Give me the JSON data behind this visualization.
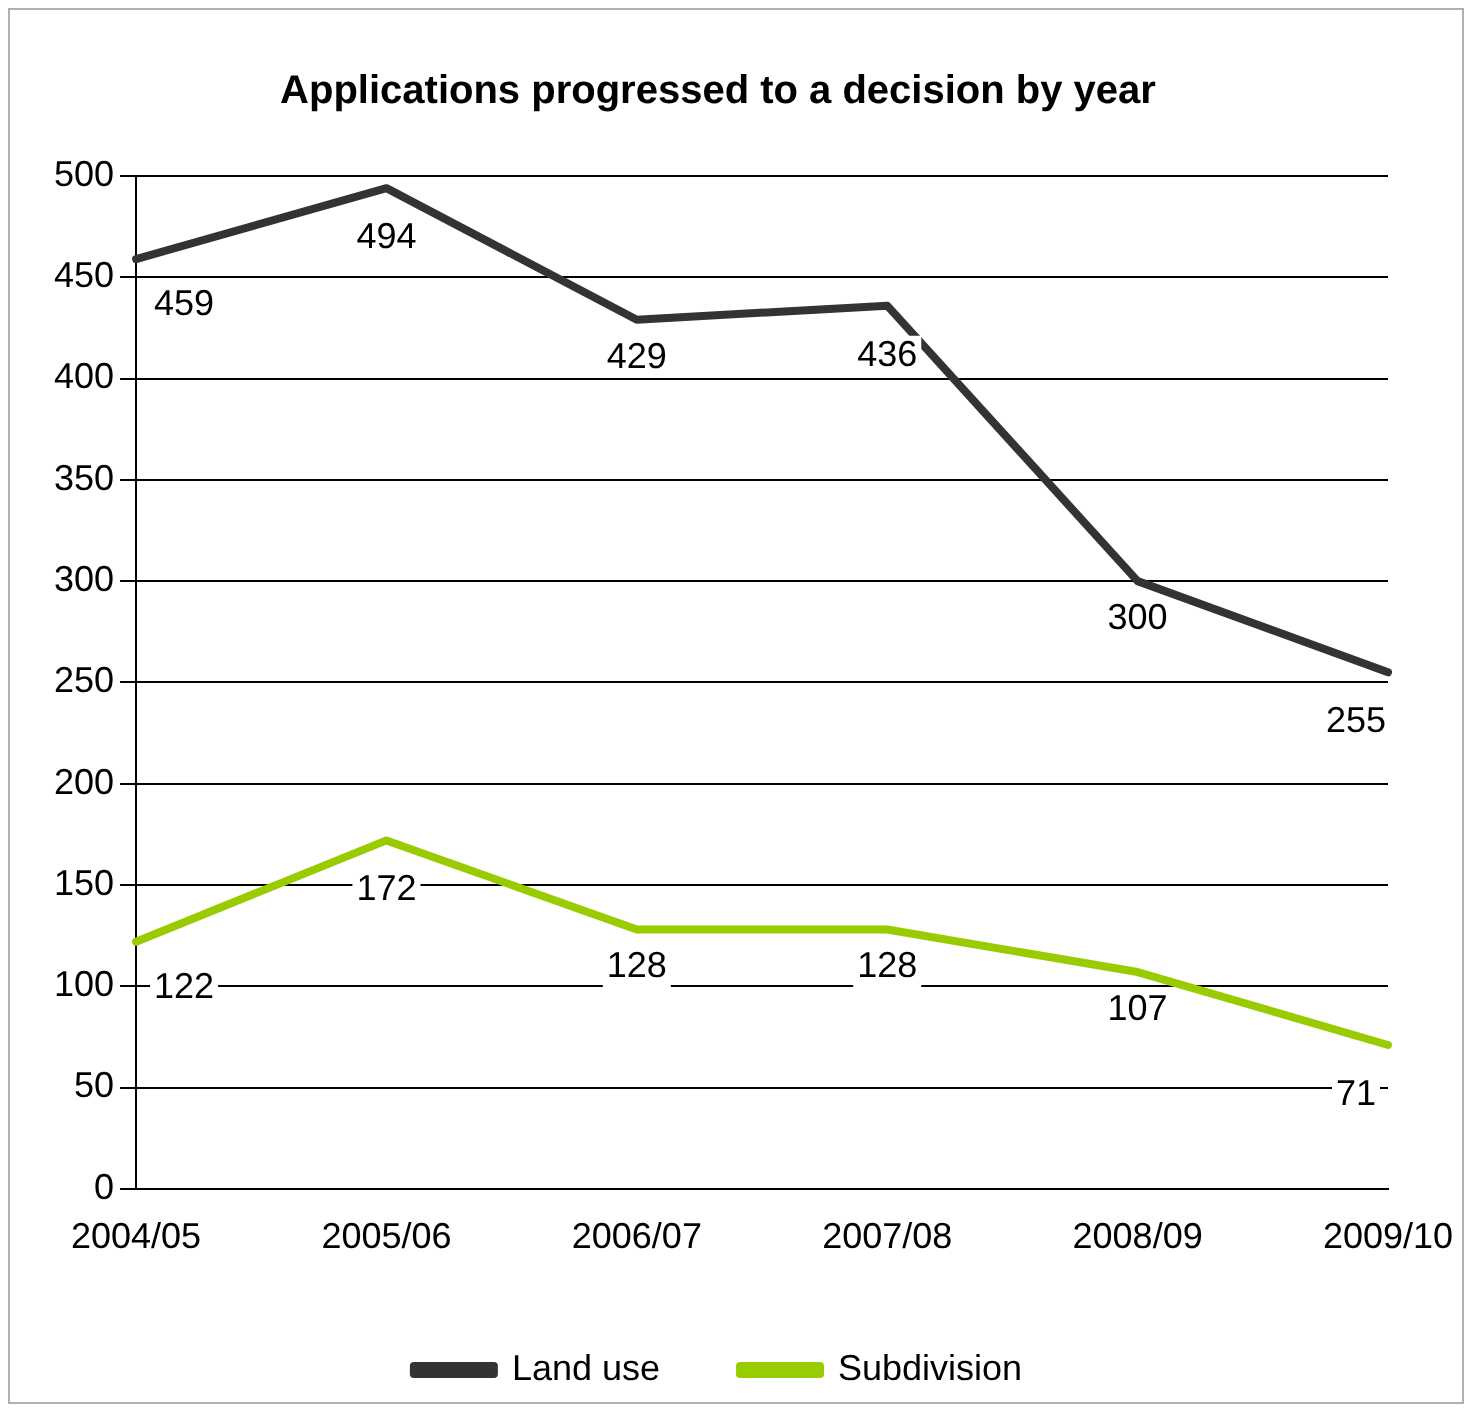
{
  "chart_data": {
    "type": "line",
    "title": "Applications progressed to a decision by year",
    "categories": [
      "2004/05",
      "2005/06",
      "2006/07",
      "2007/08",
      "2008/09",
      "2009/10"
    ],
    "series": [
      {
        "name": "Land use",
        "color": "#333333",
        "values": [
          459,
          494,
          429,
          436,
          300,
          255
        ]
      },
      {
        "name": "Subdivision",
        "color": "#99cc00",
        "values": [
          122,
          172,
          128,
          128,
          107,
          71
        ]
      }
    ],
    "ylim": [
      0,
      500
    ],
    "yticks": [
      0,
      50,
      100,
      150,
      200,
      250,
      300,
      350,
      400,
      450,
      500
    ],
    "grid": "y",
    "legend": "bottom",
    "marker": "none",
    "line_style": "solid",
    "data_labels": true
  }
}
